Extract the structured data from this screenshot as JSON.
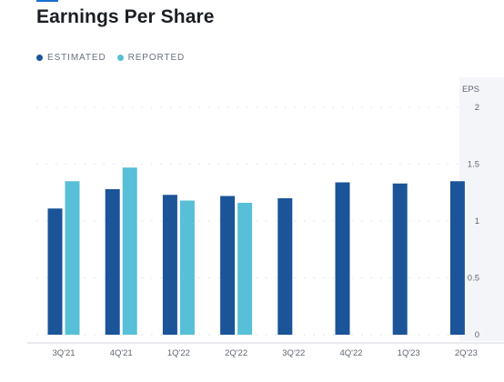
{
  "chart_data": {
    "type": "bar",
    "title": "Earnings Per Share",
    "ylabel": "EPS",
    "xlabel": "",
    "categories": [
      "3Q'21",
      "4Q'21",
      "1Q'22",
      "2Q'22",
      "3Q'22",
      "4Q'22",
      "1Q'23",
      "2Q'23"
    ],
    "series": [
      {
        "name": "ESTIMATED",
        "color": "#1b5498",
        "values": [
          1.11,
          1.28,
          1.23,
          1.22,
          1.2,
          1.34,
          1.33,
          1.35
        ]
      },
      {
        "name": "REPORTED",
        "color": "#57bfd7",
        "values": [
          1.35,
          1.47,
          1.18,
          1.16,
          null,
          null,
          null,
          null
        ]
      }
    ],
    "yticks": [
      "0",
      "0.5",
      "1",
      "1.5",
      "2"
    ],
    "ylim": [
      0,
      2
    ],
    "grid": true,
    "legend_position": "top-left"
  }
}
